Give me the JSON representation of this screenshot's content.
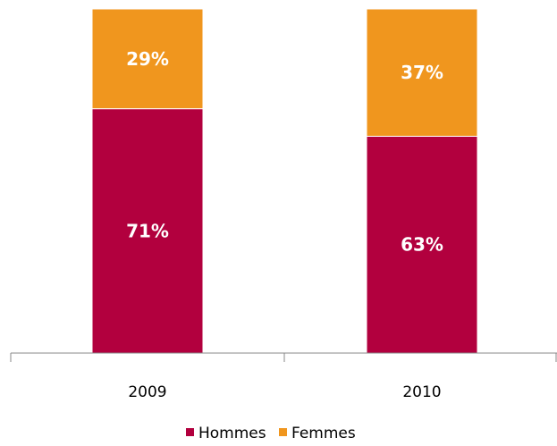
{
  "chart_data": {
    "type": "bar",
    "stacked": true,
    "percent": true,
    "categories": [
      "2009",
      "2010"
    ],
    "series": [
      {
        "name": "Hommes",
        "values": [
          71,
          63
        ],
        "labels": [
          "71%",
          "63%"
        ],
        "color": "#b2003e"
      },
      {
        "name": "Femmes",
        "values": [
          29,
          37
        ],
        "labels": [
          "29%",
          "37%"
        ],
        "color": "#f0961e"
      }
    ],
    "ylim": [
      0,
      100
    ],
    "title": "",
    "xlabel": "",
    "ylabel": "",
    "grid": false,
    "legend_position": "bottom"
  }
}
